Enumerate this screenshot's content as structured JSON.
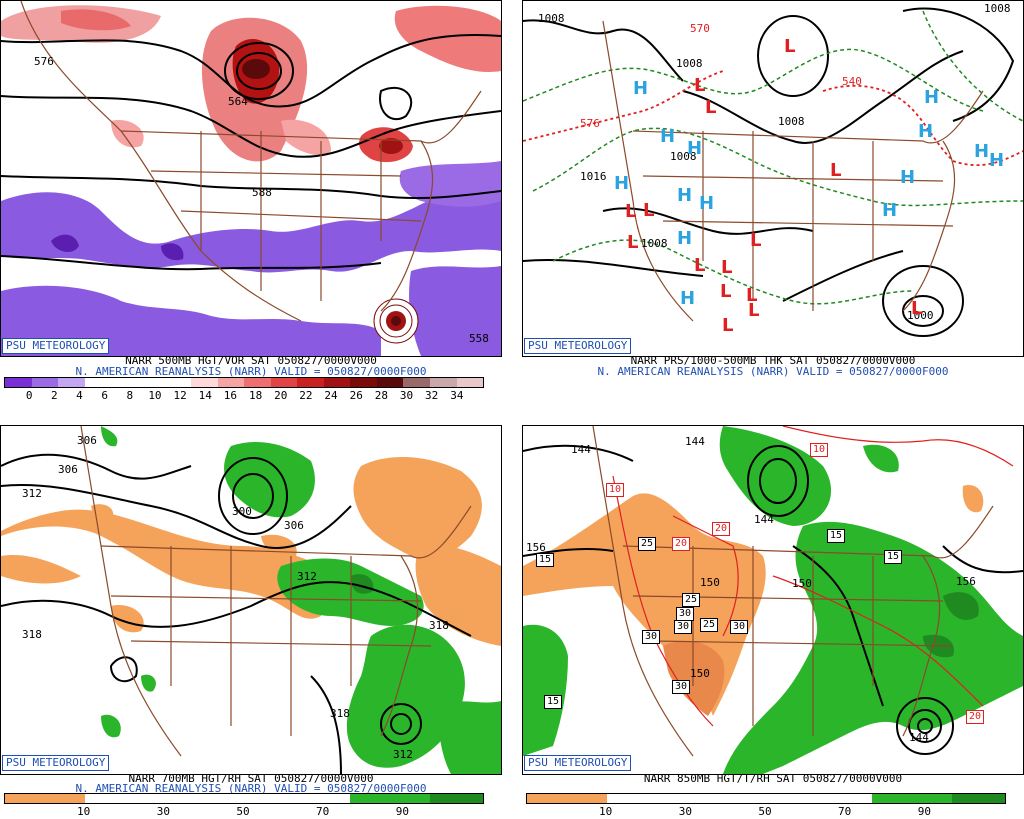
{
  "panels": [
    {
      "badge": "PSU METEOROLOGY",
      "caption1": "NARR 500MB HGT/VOR SAT 050827/0000V000",
      "caption2": "N. AMERICAN REANALYSIS (NARR) VALID = 050827/0000F000",
      "colorbar": {
        "colors": [
          "#7a2fd6",
          "#9b6be6",
          "#c4a6f2",
          "#ffffff",
          "#ffffff",
          "#ffffff",
          "#ffffff",
          "#ffd9d9",
          "#f5a3a3",
          "#ee6f6f",
          "#e04343",
          "#c92020",
          "#a11313",
          "#7a0b0b",
          "#5a0a0a",
          "#9a6a6a",
          "#c8a8a8",
          "#e8c8c8"
        ],
        "ticks": [
          "0",
          "2",
          "4",
          "6",
          "8",
          "10",
          "12",
          "14",
          "16",
          "18",
          "20",
          "22",
          "24",
          "26",
          "28",
          "30",
          "32",
          "34"
        ]
      },
      "labels": [
        "576",
        "564",
        "588",
        "576",
        "558"
      ]
    },
    {
      "badge": "PSU METEOROLOGY",
      "caption1": "NARR PRS/1000-500MB THK SAT 050827/0000V000",
      "caption2": "N. AMERICAN REANALYSIS (NARR) VALID = 050827/0000F000",
      "labels": [
        "1008",
        "570",
        "1008",
        "1008",
        "576",
        "1016",
        "1008",
        "1008",
        "1000",
        "1008",
        "540"
      ],
      "highs_letter": "H",
      "lows_letter": "L"
    },
    {
      "badge": "PSU METEOROLOGY",
      "caption1": "NARR 700MB HGT/RH SAT 050827/0000V000",
      "caption2": "N. AMERICAN REANALYSIS (NARR) VALID = 050827/0000F000",
      "colorbar": {
        "colors": [
          "#f5a35a",
          "#f5a35a",
          "#f5a35a",
          "#ffffff",
          "#ffffff",
          "#ffffff",
          "#ffffff",
          "#ffffff",
          "#ffffff",
          "#ffffff",
          "#ffffff",
          "#ffffff",
          "#ffffff",
          "#2bb52b",
          "#2bb52b",
          "#2bb52b",
          "#1f8a1f",
          "#1f8a1f"
        ],
        "ticks": [
          "10",
          "30",
          "50",
          "70",
          "90"
        ]
      },
      "labels": [
        "306",
        "312",
        "300",
        "306",
        "312",
        "318",
        "318",
        "318",
        "312"
      ]
    },
    {
      "badge": "PSU METEOROLOGY",
      "caption1": "NARR 850MB HGT/T/RH SAT 050827/0000V000",
      "caption2": "",
      "colorbar": {
        "colors": [
          "#f5a35a",
          "#f5a35a",
          "#f5a35a",
          "#ffffff",
          "#ffffff",
          "#ffffff",
          "#ffffff",
          "#ffffff",
          "#ffffff",
          "#ffffff",
          "#ffffff",
          "#ffffff",
          "#ffffff",
          "#2bb52b",
          "#2bb52b",
          "#2bb52b",
          "#1f8a1f",
          "#1f8a1f"
        ],
        "ticks": [
          "10",
          "30",
          "50",
          "70",
          "90"
        ]
      },
      "labels": [
        "144",
        "144",
        "156",
        "150",
        "150",
        "150",
        "156",
        "144",
        "144"
      ],
      "boxed": [
        "10",
        "10",
        "15",
        "20",
        "25",
        "20",
        "15",
        "15",
        "25",
        "30",
        "30",
        "25",
        "30",
        "30",
        "30",
        "15",
        "20"
      ]
    }
  ]
}
